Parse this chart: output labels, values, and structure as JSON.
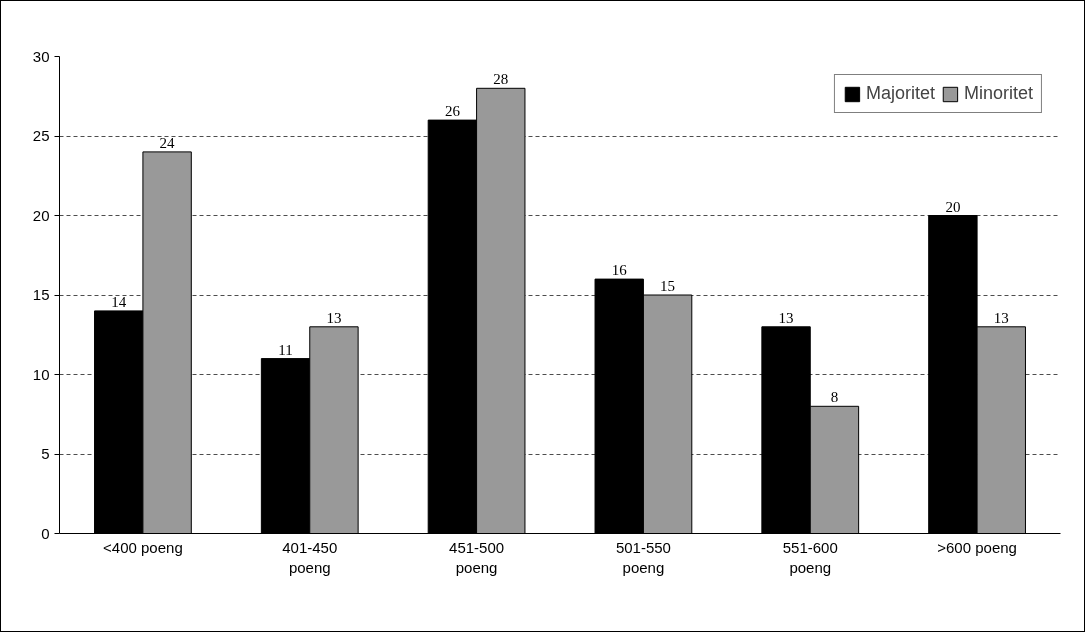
{
  "chart_data": {
    "type": "bar",
    "categories": [
      "<400 poeng",
      "401-450\npoeng",
      "451-500\npoeng",
      "501-550\npoeng",
      "551-600\npoeng",
      ">600 poeng"
    ],
    "series": [
      {
        "name": "Majoritet",
        "color": "#000000",
        "values": [
          14,
          11,
          26,
          16,
          13,
          20
        ]
      },
      {
        "name": "Minoritet",
        "color": "#999999",
        "values": [
          24,
          13,
          28,
          15,
          8,
          13
        ]
      }
    ],
    "ylim": [
      0,
      30
    ],
    "yticks": [
      0,
      5,
      10,
      15,
      20,
      25,
      30
    ],
    "grid": "y",
    "legend": "top right",
    "data_labels": true
  }
}
